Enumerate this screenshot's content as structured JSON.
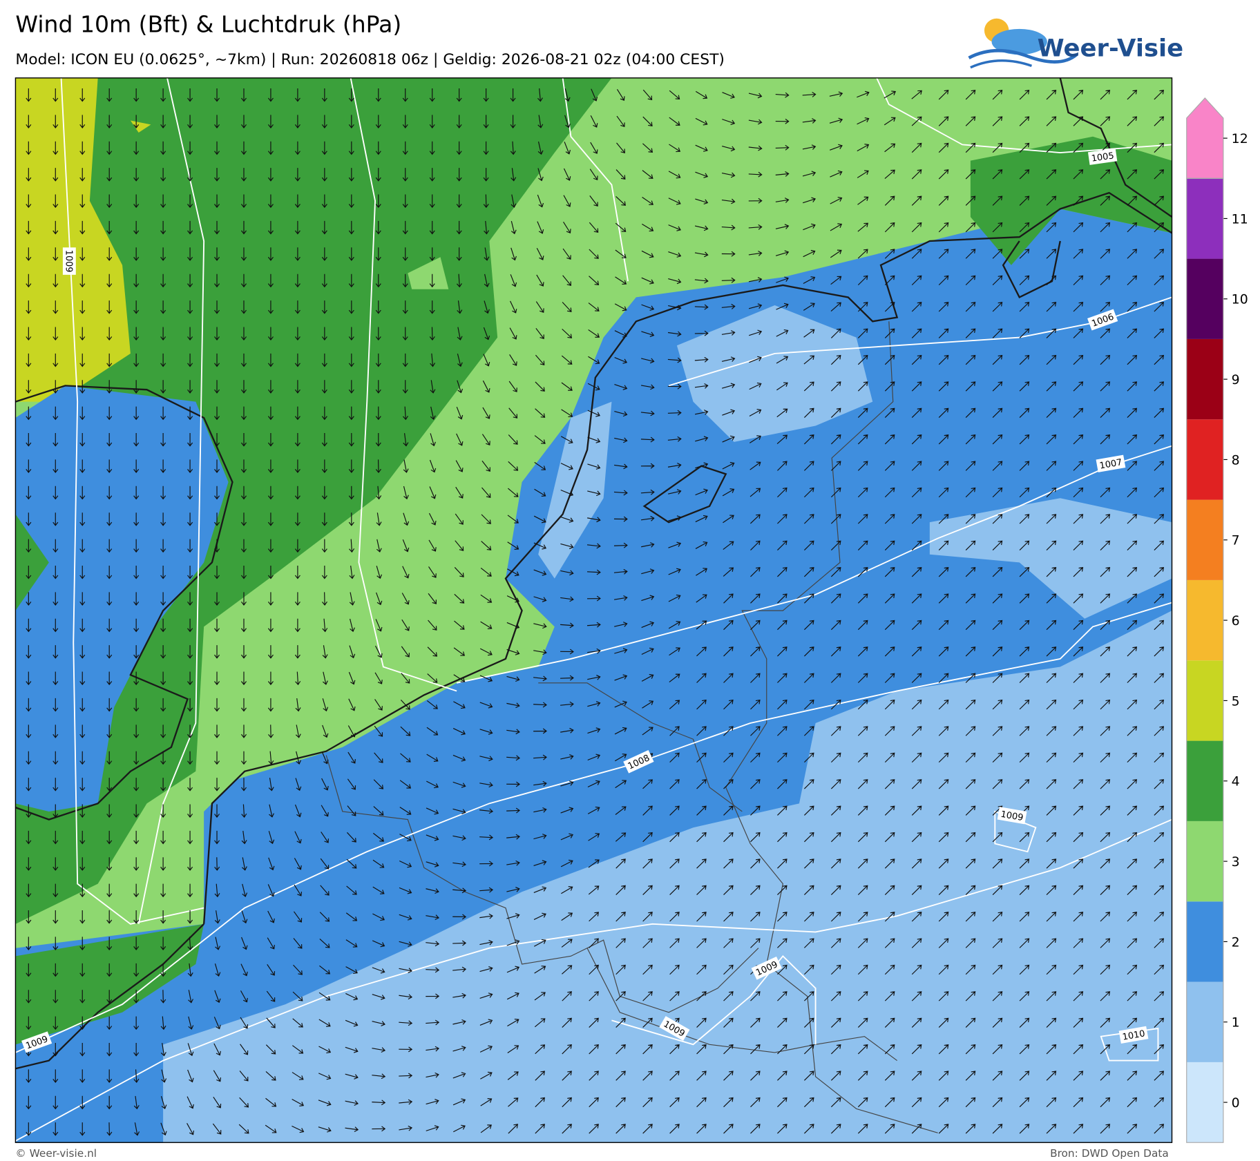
{
  "header": {
    "title": "Wind 10m (Bft) & Luchtdruk (hPa)",
    "subtitle": "Model: ICON EU (0.0625°, ~7km)  |  Run: 20260818 06z  |  Geldig: 2026-08-21 02z (04:00 CEST)",
    "logo": "Weer-Visie"
  },
  "isobar_labels": [
    1005,
    1006,
    1007,
    1008,
    1009,
    1009,
    1009,
    1009,
    1009,
    1010
  ],
  "colorbar": {
    "levels": [
      {
        "value": 0,
        "color": "#cce6fb"
      },
      {
        "value": 1,
        "color": "#8fc1ee"
      },
      {
        "value": 2,
        "color": "#3f8ede"
      },
      {
        "value": 3,
        "color": "#8ed870"
      },
      {
        "value": 4,
        "color": "#3ba03b"
      },
      {
        "value": 5,
        "color": "#c8d622"
      },
      {
        "value": 6,
        "color": "#f6b92e"
      },
      {
        "value": 7,
        "color": "#f47f20"
      },
      {
        "value": 8,
        "color": "#e02222"
      },
      {
        "value": 9,
        "color": "#9b0016"
      },
      {
        "value": 10,
        "color": "#55005f"
      },
      {
        "value": 11,
        "color": "#8d2fbc"
      },
      {
        "value": 12,
        "color": "#f984c8"
      }
    ]
  },
  "footer": {
    "left": "© Weer-visie.nl",
    "right": "Bron: DWD Open Data"
  }
}
